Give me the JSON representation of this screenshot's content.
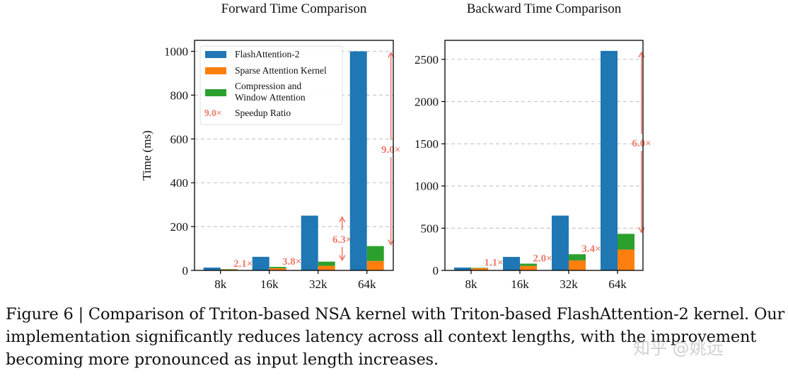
{
  "chart_data": [
    {
      "type": "bar",
      "title": "Forward Time Comparison",
      "xlabel": "",
      "ylabel": "Time (ms)",
      "categories": [
        "8k",
        "16k",
        "32k",
        "64k"
      ],
      "ylim": [
        0,
        1050
      ],
      "yticks": [
        0,
        200,
        400,
        600,
        800,
        1000
      ],
      "grid": "horizontal dashed",
      "legend": "top-left",
      "series": [
        {
          "name": "FlashAttention-2",
          "values": [
            13,
            62,
            250,
            1000
          ]
        },
        {
          "name": "Sparse Attention Kernel",
          "values": [
            4,
            10,
            21,
            43
          ],
          "stack": "nsa"
        },
        {
          "name": "Compression and Window Attention",
          "values": [
            2,
            6,
            19,
            68
          ],
          "stack": "nsa"
        }
      ],
      "annotations": [
        "2.1×",
        "3.8×",
        "6.3×",
        "9.0×"
      ]
    },
    {
      "type": "bar",
      "title": "Backward Time Comparison",
      "xlabel": "",
      "ylabel": "",
      "categories": [
        "8k",
        "16k",
        "32k",
        "64k"
      ],
      "ylim": [
        0,
        2725
      ],
      "yticks": [
        0,
        500,
        1000,
        1500,
        2000,
        2500
      ],
      "grid": "horizontal dashed",
      "series": [
        {
          "name": "FlashAttention-2",
          "values": [
            34,
            160,
            649,
            2600
          ]
        },
        {
          "name": "Sparse Attention Kernel",
          "values": [
            26,
            53,
            118,
            247
          ],
          "stack": "nsa"
        },
        {
          "name": "Compression and Window Attention",
          "values": [
            5,
            27,
            73,
            186
          ],
          "stack": "nsa"
        }
      ],
      "annotations": [
        "1.1×",
        "2.0×",
        "3.4×",
        "6.0×"
      ]
    }
  ],
  "legend": {
    "items": [
      "FlashAttention-2",
      "Sparse Attention Kernel",
      "Compression and",
      "Window Attention"
    ],
    "speedup_sample": "9.0×",
    "speedup_label": "Speedup Ratio"
  },
  "colors": {
    "flash": "#1f77b4",
    "sparse": "#ff7f0e",
    "compress": "#2ca02c",
    "speedup": "#ee7c6c"
  },
  "caption": "Figure 6 | Comparison of Triton-based NSA kernel with Triton-based FlashAttention-2 kernel. Our implementation significantly reduces latency across all context lengths, with the improvement becoming more pronounced as input length increases.",
  "watermark": "知乎 @姚远"
}
